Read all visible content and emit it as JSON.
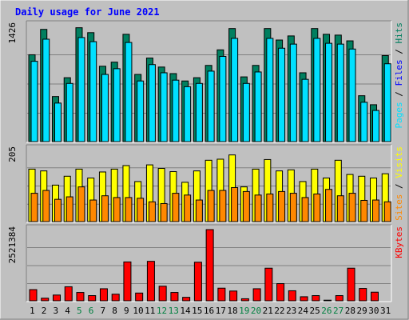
{
  "chart_data": {
    "type": "bar",
    "title": "Daily usage for June 2021",
    "categories": [
      "1",
      "2",
      "3",
      "4",
      "5",
      "6",
      "7",
      "8",
      "9",
      "10",
      "11",
      "12",
      "13",
      "14",
      "15",
      "16",
      "17",
      "18",
      "19",
      "20",
      "21",
      "22",
      "23",
      "24",
      "25",
      "26",
      "27",
      "28",
      "29",
      "30",
      "31"
    ],
    "weekend_days": [
      "5",
      "6",
      "12",
      "13",
      "19",
      "20",
      "26",
      "27"
    ],
    "panels": [
      {
        "name": "hits-files-pages",
        "ymax_label": "1426",
        "ylim": [
          0,
          1426
        ],
        "legend": [
          "Pages",
          "Files",
          "Hits"
        ],
        "series": [
          {
            "name": "Hits",
            "color": "#007f5f",
            "values": [
              1070,
              1380,
              560,
              790,
              1400,
              1340,
              930,
              980,
              1320,
              830,
              1030,
              920,
              840,
              750,
              790,
              940,
              1130,
              1390,
              800,
              940,
              1390,
              1250,
              1300,
              850,
              1390,
              1320,
              1310,
              1240,
              570,
              460,
              1060
            ]
          },
          {
            "name": "Files",
            "color": "#00e0ff",
            "values": [
              990,
              1260,
              480,
              720,
              1280,
              1230,
              830,
              900,
              1220,
              750,
              950,
              850,
              760,
              680,
              720,
              870,
              1050,
              1270,
              720,
              860,
              1270,
              1150,
              1200,
              770,
              1270,
              1210,
              1200,
              1140,
              490,
              390,
              960
            ]
          }
        ]
      },
      {
        "name": "visits-sites",
        "ymax_label": "205",
        "ylim": [
          0,
          205
        ],
        "legend": [
          "Sites",
          "Visits"
        ],
        "series": [
          {
            "name": "Visits",
            "color": "#ffff00",
            "values": [
              150,
              145,
              105,
              130,
              150,
              125,
              142,
              150,
              160,
              115,
              162,
              152,
              143,
              113,
              145,
              175,
              178,
              190,
              100,
              150,
              177,
              145,
              148,
              115,
              150,
              125,
              175,
              135,
              130,
              125,
              137
            ]
          },
          {
            "name": "Sites",
            "color": "#ff8800",
            "values": [
              82,
              90,
              65,
              72,
              100,
              63,
              75,
              70,
              70,
              68,
              58,
              53,
              82,
              77,
              63,
              90,
              90,
              98,
              87,
              77,
              80,
              87,
              82,
              70,
              80,
              93,
              75,
              82,
              62,
              63,
              58
            ]
          }
        ]
      },
      {
        "name": "kbytes",
        "ymax_label": "2521384",
        "ylim": [
          0,
          2521384
        ],
        "legend": [
          "KBytes"
        ],
        "series": [
          {
            "name": "KBytes",
            "color": "#ff0000",
            "values": [
              420000,
              120000,
              230000,
              520000,
              320000,
              210000,
              450000,
              260000,
              1390000,
              300000,
              1410000,
              540000,
              320000,
              150000,
              1380000,
              2521384,
              470000,
              370000,
              100000,
              450000,
              1170000,
              630000,
              380000,
              170000,
              210000,
              50000,
              210000,
              1170000,
              460000,
              330000,
              0
            ]
          }
        ]
      }
    ]
  }
}
